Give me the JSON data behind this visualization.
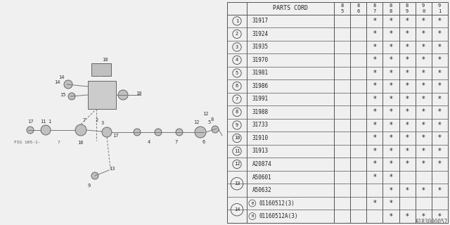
{
  "bg_color": "#f0f0f0",
  "table_bg": "#f0f0f0",
  "col_header": "PARTS CORD",
  "year_cols": [
    "85",
    "86",
    "87",
    "88",
    "89",
    "90",
    "91"
  ],
  "rows": [
    {
      "num": "1",
      "circled": true,
      "part": "31917",
      "stars": [
        0,
        0,
        1,
        1,
        1,
        1,
        1
      ]
    },
    {
      "num": "2",
      "circled": true,
      "part": "31924",
      "stars": [
        0,
        0,
        1,
        1,
        1,
        1,
        1
      ]
    },
    {
      "num": "3",
      "circled": true,
      "part": "31935",
      "stars": [
        0,
        0,
        1,
        1,
        1,
        1,
        1
      ]
    },
    {
      "num": "4",
      "circled": true,
      "part": "31970",
      "stars": [
        0,
        0,
        1,
        1,
        1,
        1,
        1
      ]
    },
    {
      "num": "5",
      "circled": true,
      "part": "31981",
      "stars": [
        0,
        0,
        1,
        1,
        1,
        1,
        1
      ]
    },
    {
      "num": "6",
      "circled": true,
      "part": "31986",
      "stars": [
        0,
        0,
        1,
        1,
        1,
        1,
        1
      ]
    },
    {
      "num": "7",
      "circled": true,
      "part": "31991",
      "stars": [
        0,
        0,
        1,
        1,
        1,
        1,
        1
      ]
    },
    {
      "num": "8",
      "circled": true,
      "part": "31988",
      "stars": [
        0,
        0,
        1,
        1,
        1,
        1,
        1
      ]
    },
    {
      "num": "9",
      "circled": true,
      "part": "31733",
      "stars": [
        0,
        0,
        1,
        1,
        1,
        1,
        1
      ]
    },
    {
      "num": "10",
      "circled": true,
      "part": "31910",
      "stars": [
        0,
        0,
        1,
        1,
        1,
        1,
        1
      ]
    },
    {
      "num": "11",
      "circled": true,
      "part": "31913",
      "stars": [
        0,
        0,
        1,
        1,
        1,
        1,
        1
      ]
    },
    {
      "num": "12",
      "circled": true,
      "part": "A20874",
      "stars": [
        0,
        0,
        1,
        1,
        1,
        1,
        1
      ]
    },
    {
      "num": "13",
      "circled": false,
      "part": "A50601",
      "stars": [
        0,
        0,
        1,
        1,
        0,
        0,
        0
      ],
      "merge_start": true
    },
    {
      "num": "",
      "circled": false,
      "part": "A50632",
      "stars": [
        0,
        0,
        0,
        1,
        1,
        1,
        1
      ],
      "merge_end": true
    },
    {
      "num": "14",
      "circled": false,
      "part": "B01160512(3)",
      "stars": [
        0,
        0,
        1,
        1,
        0,
        0,
        0
      ],
      "bsym": true,
      "merge_start": true
    },
    {
      "num": "",
      "circled": false,
      "part": "B01160512A(3)",
      "stars": [
        0,
        0,
        0,
        1,
        1,
        1,
        1
      ],
      "bsym": true,
      "merge_end": true
    }
  ],
  "watermark": "A183000057"
}
